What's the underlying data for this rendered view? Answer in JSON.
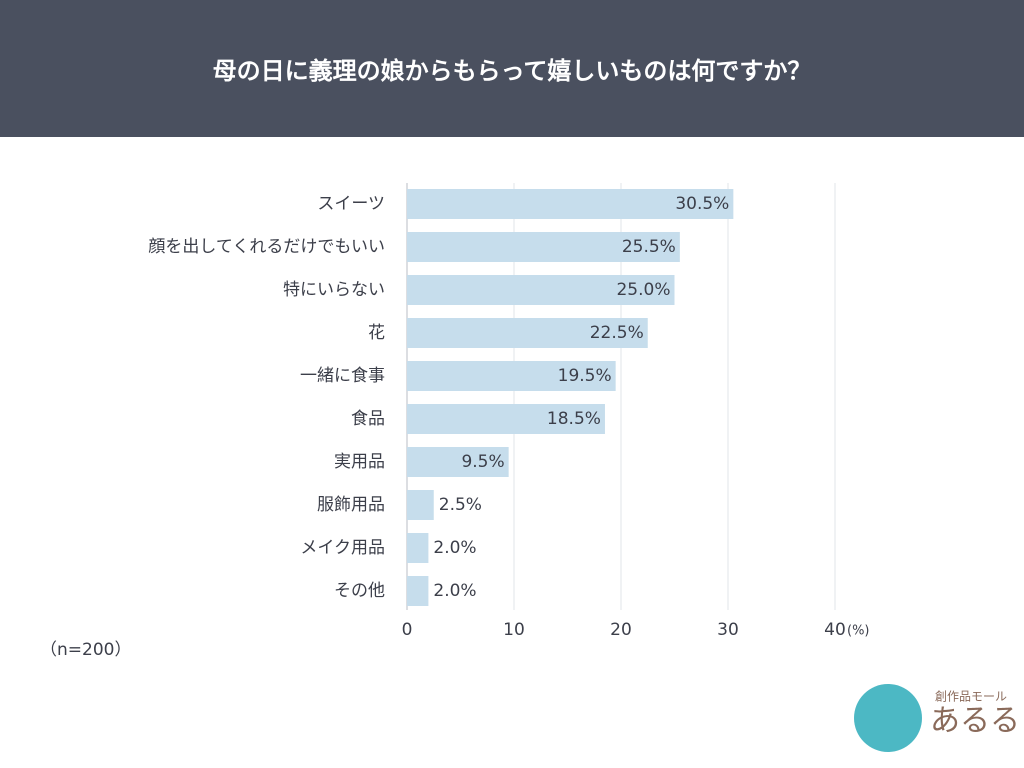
{
  "chart_data": {
    "type": "barh",
    "title": "母の日に義理の娘からもらって嬉しいものは何ですか？",
    "categories": [
      "スイーツ",
      "顔を出してくれるだけでもいい",
      "特にいらない",
      "花",
      "一緒に食事",
      "食品",
      "実用品",
      "服飾用品",
      "メイク用品",
      "その他"
    ],
    "values": [
      30.5,
      25.5,
      25.0,
      22.5,
      19.5,
      18.5,
      9.5,
      2.5,
      2.0,
      2.0
    ],
    "value_labels": [
      "30.5%",
      "25.5%",
      "25.0%",
      "22.5%",
      "19.5%",
      "18.5%",
      "9.5%",
      "2.5%",
      "2.0%",
      "2.0%"
    ],
    "color": "#c6ddec",
    "xlim": [
      0,
      40
    ],
    "xticks": [
      0,
      10,
      20,
      30,
      40
    ],
    "xlabel": "(%)",
    "grid": true,
    "note": "（n=200）"
  },
  "logo": {
    "tagline": "創作品モール",
    "name": "あるる"
  }
}
